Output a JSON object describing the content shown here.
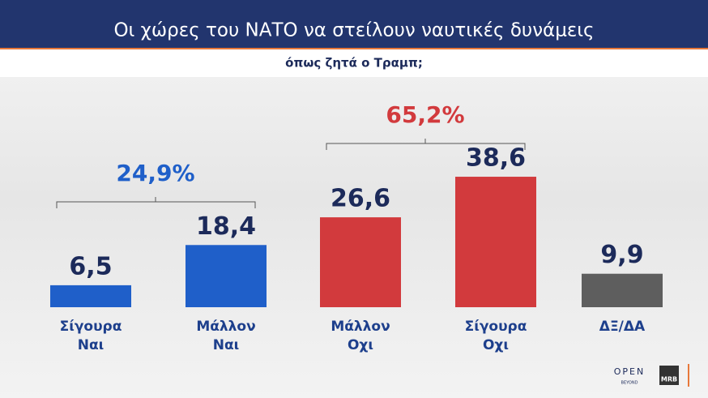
{
  "chart_data": {
    "type": "bar",
    "title": "Οι χώρες του ΝΑΤΟ να στείλουν ναυτικές δυνάμεις",
    "subtitle": "όπως ζητά ο Τραμπ;",
    "categories": [
      [
        "Σίγουρα",
        "Ναι"
      ],
      [
        "Μάλλον",
        "Ναι"
      ],
      [
        "Μάλλον",
        "Οχι"
      ],
      [
        "Σίγουρα",
        "Οχι"
      ],
      [
        "ΔΞ/ΔΑ"
      ]
    ],
    "values": [
      6.5,
      18.4,
      26.6,
      38.6,
      9.9
    ],
    "value_labels": [
      "6,5",
      "18,4",
      "26,6",
      "38,6",
      "9,9"
    ],
    "colors": [
      "#1f5fc9",
      "#1f5fc9",
      "#d23a3d",
      "#d23a3d",
      "#5e5e5e"
    ],
    "annotations": [
      {
        "value": 24.9,
        "label": "24,9%",
        "color": "#1f5fc9"
      },
      {
        "value": 65.2,
        "label": "65,2%",
        "color": "#d23a3d"
      }
    ],
    "logos": [
      "OPEN",
      "BEYOND",
      "MRB"
    ]
  }
}
